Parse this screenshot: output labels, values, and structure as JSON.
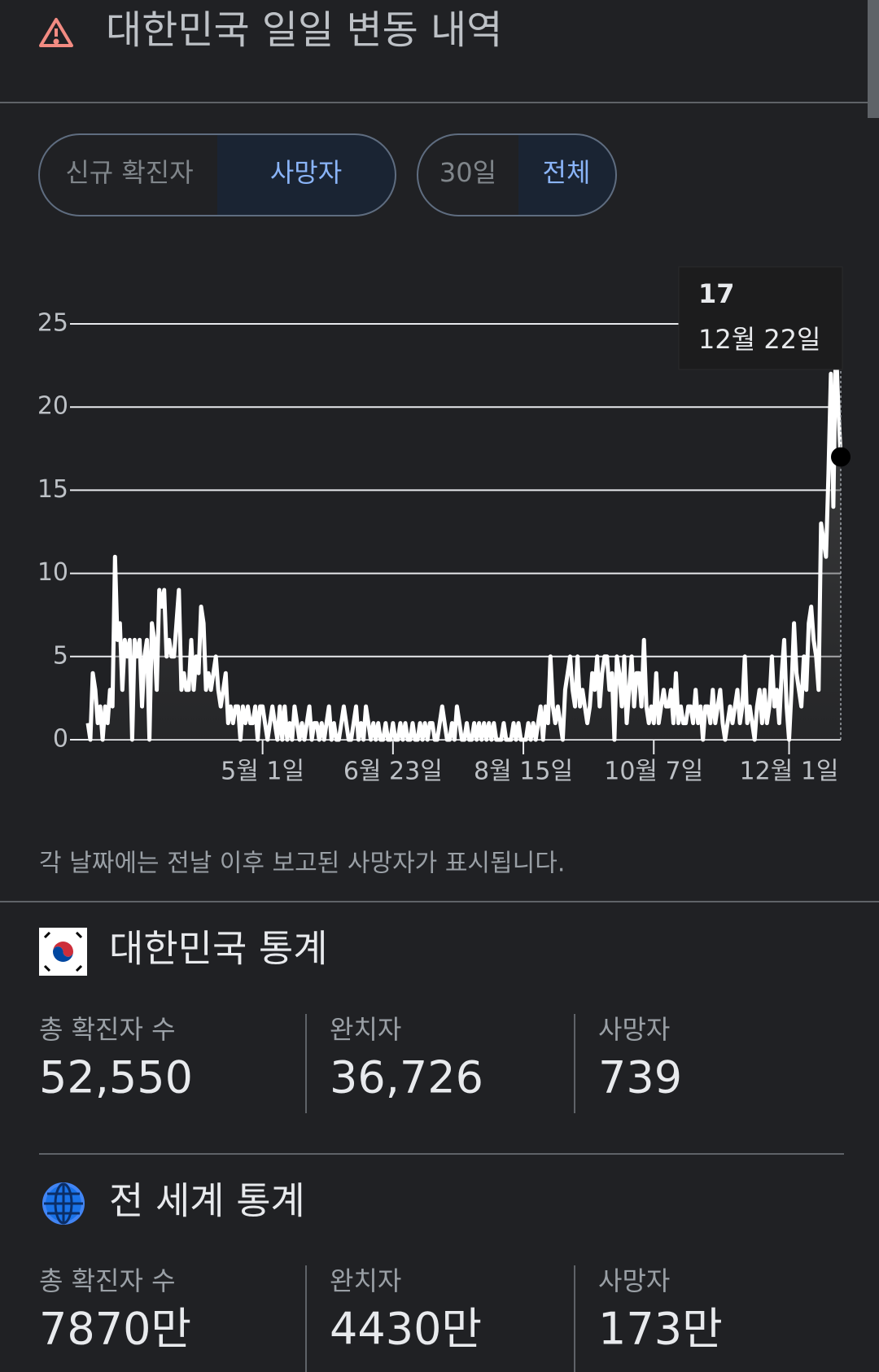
{
  "header": {
    "title": "대한민국 일일 변동 내역"
  },
  "tabs": {
    "metric": [
      "신규 확진자",
      "사망자"
    ],
    "range": [
      "30일",
      "전체"
    ]
  },
  "chart_data": {
    "type": "area",
    "color": "#ffffff",
    "grid": true,
    "x": [
      51,
      52,
      53,
      54,
      55,
      56,
      57,
      58,
      59,
      60,
      61,
      62,
      63,
      64,
      65,
      66,
      67,
      68,
      69,
      70,
      71,
      72,
      73,
      74,
      75,
      76,
      77,
      78,
      79,
      80,
      81,
      82,
      83,
      84,
      85,
      86,
      87,
      88,
      89,
      90,
      91,
      92,
      93,
      94,
      95,
      96,
      97,
      98,
      99,
      100,
      101,
      102,
      103,
      104,
      105,
      106,
      107,
      108,
      109,
      110,
      111,
      112,
      113,
      114,
      115,
      116,
      117,
      118,
      119,
      120,
      121,
      122,
      123,
      124,
      125,
      126,
      127,
      128,
      129,
      130,
      131,
      132,
      133,
      134,
      135,
      136,
      137,
      138,
      139,
      140,
      141,
      142,
      143,
      144,
      145,
      146,
      147,
      148,
      149,
      150,
      151,
      152,
      153,
      154,
      155,
      156,
      157,
      158,
      159,
      160,
      161,
      162,
      163,
      164,
      165,
      166,
      167,
      168,
      169,
      170,
      171,
      172,
      173,
      174,
      175,
      176,
      177,
      178,
      179,
      180,
      181,
      182,
      183,
      184,
      185,
      186,
      187,
      188,
      189,
      190,
      191,
      192,
      193,
      194,
      195,
      196,
      197,
      198,
      199,
      200,
      201,
      202,
      203,
      204,
      205,
      206,
      207,
      208,
      209,
      210,
      211,
      212,
      213,
      214,
      215,
      216,
      217,
      218,
      219,
      220,
      221,
      222,
      223,
      224,
      225,
      226,
      227,
      228,
      229,
      230,
      231,
      232,
      233,
      234,
      235,
      236,
      237,
      238,
      239,
      240,
      241,
      242,
      243,
      244,
      245,
      246,
      247,
      248,
      249,
      250,
      251,
      252,
      253,
      254,
      255,
      256,
      257,
      258,
      259,
      260,
      261,
      262,
      263,
      264,
      265,
      266,
      267,
      268,
      269,
      270,
      271,
      272,
      273,
      274,
      275,
      276,
      277,
      278,
      279,
      280,
      281,
      282,
      283,
      284,
      285,
      286,
      287,
      288,
      289,
      290,
      291,
      292,
      293,
      294,
      295,
      296,
      297,
      298,
      299,
      300,
      301,
      302,
      303,
      304,
      305,
      306,
      307,
      308,
      309,
      310,
      311,
      312,
      313,
      314,
      315,
      316,
      317,
      318,
      319,
      320,
      321,
      322,
      323,
      324,
      325,
      326,
      327,
      328,
      329,
      330,
      331,
      332,
      333,
      334,
      335,
      336,
      337,
      338,
      339,
      340,
      341,
      342,
      343,
      344,
      345,
      346,
      347,
      348,
      349,
      350,
      351,
      352,
      353,
      354,
      355,
      356,
      357
    ],
    "values": [
      1,
      0,
      4,
      3,
      1,
      2,
      0,
      2,
      1,
      3,
      2,
      11,
      6,
      7,
      3,
      6,
      5,
      6,
      0,
      6,
      5,
      6,
      2,
      5,
      6,
      0,
      7,
      6,
      3,
      9,
      8,
      9,
      5,
      6,
      5,
      5,
      7,
      9,
      3,
      4,
      3,
      3,
      6,
      3,
      5,
      4,
      8,
      7,
      3,
      4,
      3,
      4,
      5,
      3,
      2,
      3,
      4,
      1,
      2,
      1,
      2,
      2,
      0,
      2,
      1,
      2,
      1,
      1,
      2,
      0,
      2,
      2,
      1,
      0,
      1,
      2,
      1,
      0,
      2,
      0,
      2,
      0,
      1,
      0,
      2,
      1,
      0,
      1,
      0,
      1,
      2,
      0,
      1,
      1,
      0,
      1,
      0,
      1,
      2,
      0,
      1,
      0,
      0,
      1,
      2,
      1,
      0,
      0,
      1,
      2,
      0,
      1,
      0,
      2,
      1,
      0,
      1,
      0,
      1,
      0,
      0,
      1,
      0,
      0,
      1,
      0,
      0,
      1,
      0,
      1,
      0,
      0,
      1,
      0,
      0,
      1,
      0,
      1,
      0,
      1,
      1,
      0,
      0,
      1,
      2,
      1,
      0,
      0,
      1,
      0,
      2,
      1,
      0,
      0,
      1,
      0,
      0,
      1,
      0,
      1,
      0,
      1,
      0,
      1,
      0,
      1,
      0,
      0,
      0,
      1,
      0,
      0,
      0,
      1,
      0,
      1,
      0,
      0,
      0,
      1,
      0,
      1,
      0,
      1,
      2,
      0,
      2,
      1,
      5,
      2,
      1,
      2,
      1,
      0,
      3,
      4,
      5,
      3,
      2,
      5,
      2,
      3,
      2,
      1,
      2,
      4,
      3,
      5,
      2,
      4,
      5,
      5,
      3,
      4,
      0,
      5,
      4,
      2,
      5,
      1,
      3,
      5,
      2,
      4,
      4,
      2,
      6,
      2,
      1,
      2,
      1,
      4,
      1,
      2,
      3,
      2,
      2,
      3,
      1,
      4,
      1,
      2,
      1,
      1,
      2,
      2,
      1,
      3,
      1,
      2,
      0,
      2,
      2,
      1,
      3,
      1,
      2,
      3,
      1,
      0,
      1,
      2,
      1,
      2,
      3,
      1,
      2,
      5,
      1,
      2,
      1,
      0,
      2,
      3,
      1,
      3,
      1,
      2,
      5,
      2,
      3,
      1,
      4,
      6,
      2,
      0,
      3,
      7,
      4,
      3,
      2,
      5,
      3,
      7,
      8,
      6,
      5,
      3,
      13,
      12,
      11,
      16,
      22,
      14,
      24,
      20,
      17
    ],
    "xlim": [
      51,
      357
    ],
    "ylim": [
      0,
      25
    ],
    "xticks": [
      {
        "value": 122,
        "label": "5월 1일"
      },
      {
        "value": 175,
        "label": "6월 23일"
      },
      {
        "value": 228,
        "label": "8월 15일"
      },
      {
        "value": 281,
        "label": "10월 7일"
      },
      {
        "value": 336,
        "label": "12월 1일"
      }
    ],
    "yticks": [
      0,
      5,
      10,
      15,
      20,
      25
    ],
    "tooltip": {
      "x": 357,
      "label": "12월 22일"
    }
  },
  "note": "각 날짜에는 전날 이후 보고된 사망자가 표시됩니다.",
  "korea_stats": {
    "title": "대한민국 통계",
    "items": [
      {
        "label": "총 확진자 수",
        "value": "52,550"
      },
      {
        "label": "완치자",
        "value": "36,726"
      },
      {
        "label": "사망자",
        "value": "739"
      }
    ]
  },
  "world_stats": {
    "title": "전 세계 통계",
    "items": [
      {
        "label": "총 확진자 수",
        "value": "7870만"
      },
      {
        "label": "완치자",
        "value": "4430만"
      },
      {
        "label": "사망자",
        "value": "173만"
      }
    ]
  }
}
